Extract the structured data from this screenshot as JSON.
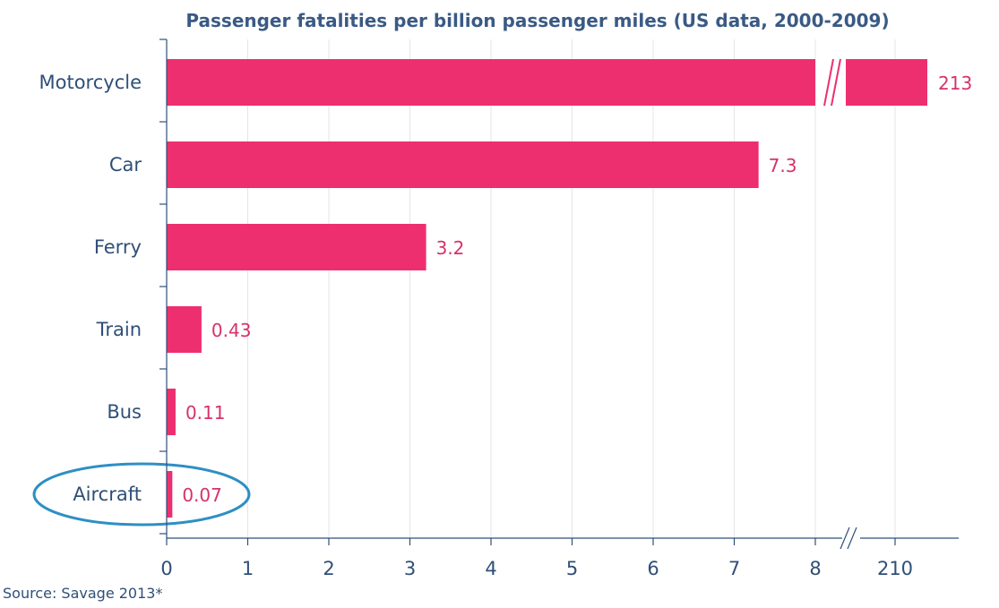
{
  "chart_data": {
    "type": "bar",
    "orientation": "horizontal",
    "title": "Passenger fatalities per billion passenger miles (US data, 2000-2009)",
    "source": "Source: Savage 2013*",
    "categories": [
      "Motorcycle",
      "Car",
      "Ferry",
      "Train",
      "Bus",
      "Aircraft"
    ],
    "values": [
      213,
      7.3,
      3.2,
      0.43,
      0.11,
      0.07
    ],
    "value_labels": [
      "213",
      "7.3",
      "3.2",
      "0.43",
      "0.11",
      "0.07"
    ],
    "x_ticks": [
      "0",
      "1",
      "2",
      "3",
      "4",
      "5",
      "6",
      "7",
      "8",
      "210"
    ],
    "xlim": [
      0,
      8
    ],
    "axis_break": {
      "after": 8,
      "resumes_at": 210
    },
    "highlighted_category": "Aircraft",
    "grid": true,
    "colors": {
      "bar": "#ee2f6f",
      "value_text": "#d63269",
      "axis_text": "#2f4f77",
      "title": "#3a5a84",
      "highlight": "#2e8fc4",
      "grid": "#e5e5e8"
    }
  }
}
